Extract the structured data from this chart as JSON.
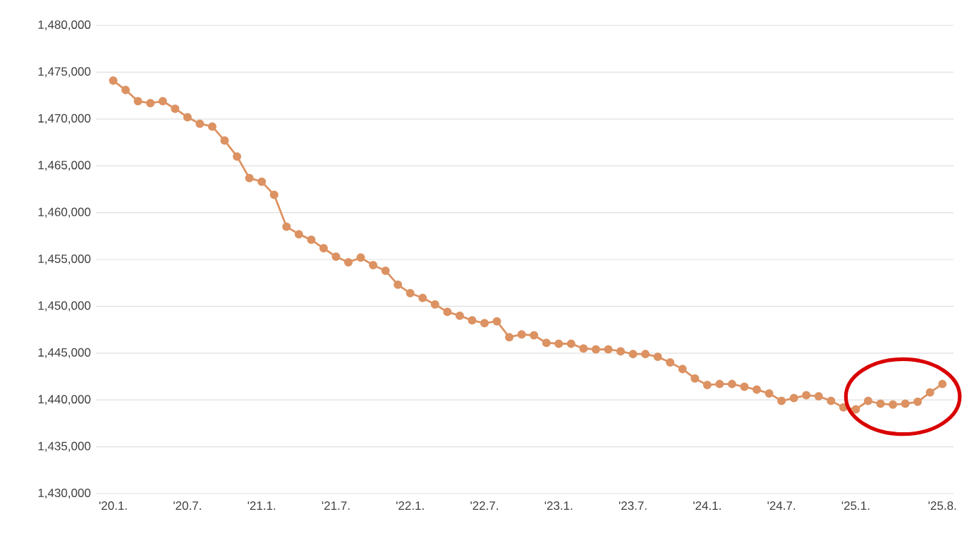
{
  "chart_data": {
    "type": "line",
    "categories": [
      "'20.1.",
      null,
      null,
      null,
      null,
      null,
      "'20.7.",
      null,
      null,
      null,
      null,
      null,
      "'21.1.",
      null,
      null,
      null,
      null,
      null,
      "'21.7.",
      null,
      null,
      null,
      null,
      null,
      "'22.1.",
      null,
      null,
      null,
      null,
      null,
      "'22.7.",
      null,
      null,
      null,
      null,
      null,
      "'23.1.",
      null,
      null,
      null,
      null,
      null,
      "'23.7.",
      null,
      null,
      null,
      null,
      null,
      "'24.1.",
      null,
      null,
      null,
      null,
      null,
      "'24.7.",
      null,
      null,
      null,
      null,
      null,
      "'25.1.",
      null,
      null,
      null,
      null,
      null,
      null,
      "'25.8."
    ],
    "values": [
      1474100,
      1473100,
      1471900,
      1471700,
      1471900,
      1471100,
      1470200,
      1469500,
      1469200,
      1467700,
      1466000,
      1463700,
      1463300,
      1461900,
      1458500,
      1457700,
      1457100,
      1456200,
      1455300,
      1454700,
      1455200,
      1454400,
      1453800,
      1452300,
      1451400,
      1450900,
      1450200,
      1449400,
      1449000,
      1448500,
      1448200,
      1448400,
      1446700,
      1447000,
      1446900,
      1446100,
      1446000,
      1446000,
      1445500,
      1445400,
      1445400,
      1445200,
      1444900,
      1444900,
      1444600,
      1444000,
      1443300,
      1442300,
      1441600,
      1441700,
      1441700,
      1441400,
      1441100,
      1440700,
      1439900,
      1440200,
      1440500,
      1440400,
      1439900,
      1439200,
      1439000,
      1439900,
      1439600,
      1439500,
      1439600,
      1439800,
      1440800,
      1441700
    ],
    "color": "#dc9262",
    "marker": "circle",
    "grid": "y",
    "ylim": [
      1430000,
      1480000
    ],
    "yticks": [
      {
        "value": 1430000,
        "label": "1,430,000"
      },
      {
        "value": 1435000,
        "label": "1,435,000"
      },
      {
        "value": 1440000,
        "label": "1,440,000"
      },
      {
        "value": 1445000,
        "label": "1,445,000"
      },
      {
        "value": 1450000,
        "label": "1,450,000"
      },
      {
        "value": 1455000,
        "label": "1,455,000"
      },
      {
        "value": 1460000,
        "label": "1,460,000"
      },
      {
        "value": 1465000,
        "label": "1,465,000"
      },
      {
        "value": 1470000,
        "label": "1,470,000"
      },
      {
        "value": 1475000,
        "label": "1,475,000"
      },
      {
        "value": 1480000,
        "label": "1,480,000"
      }
    ]
  }
}
